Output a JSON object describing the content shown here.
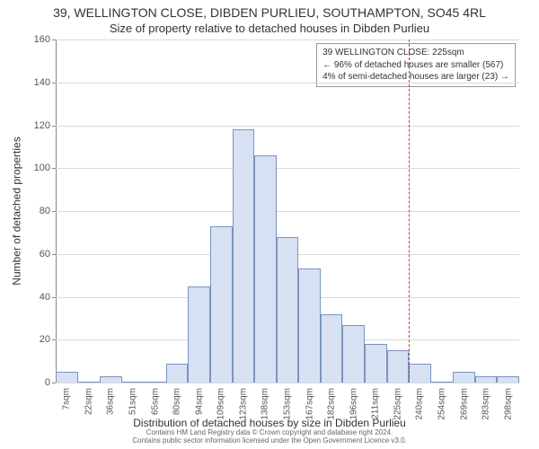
{
  "title": "39, WELLINGTON CLOSE, DIBDEN PURLIEU, SOUTHAMPTON, SO45 4RL",
  "subtitle": "Size of property relative to detached houses in Dibden Purlieu",
  "y_axis_title": "Number of detached properties",
  "x_axis_title": "Distribution of detached houses by size in Dibden Purlieu",
  "footer_line1": "Contains HM Land Registry data © Crown copyright and database right 2024.",
  "footer_line2": "Contains public sector information licensed under the Open Government Licence v3.0.",
  "legend": {
    "line1": "39 WELLINGTON CLOSE: 225sqm",
    "line2": "← 96% of detached houses are smaller (567)",
    "line3": "4% of semi-detached houses are larger (23) →"
  },
  "chart": {
    "type": "bar",
    "x_unit_suffix": "sqm",
    "categories": [
      7,
      22,
      36,
      51,
      65,
      80,
      94,
      109,
      123,
      138,
      153,
      167,
      182,
      196,
      211,
      225,
      240,
      254,
      269,
      283,
      298
    ],
    "values": [
      5,
      0,
      3,
      0,
      0,
      9,
      45,
      73,
      118,
      106,
      68,
      53,
      32,
      27,
      18,
      15,
      9,
      0,
      5,
      3,
      3
    ],
    "bar_fill": "#d6e1f3",
    "bar_stroke": "#7a94c0",
    "background_color": "#ffffff",
    "grid_color": "#d9d9d9",
    "axis_color": "#888888",
    "ylim": [
      0,
      160
    ],
    "ytick_step": 20,
    "bar_width_ratio": 1.0,
    "marker": {
      "x_value": 225,
      "color": "#d33a3a",
      "style": "dashed"
    },
    "title_fontsize": 14,
    "subtitle_fontsize": 13,
    "axis_title_fontsize": 12,
    "tick_fontsize": 11,
    "x_tick_fontsize": 10,
    "legend_fontsize": 10,
    "footer_fontsize": 8
  }
}
